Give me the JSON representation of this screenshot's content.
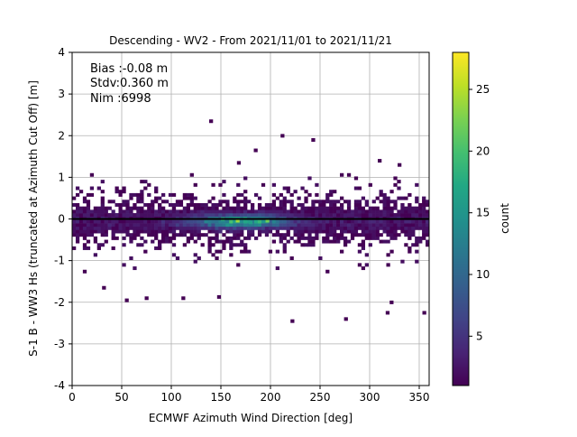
{
  "chart_data": {
    "type": "heatmap",
    "title": "Descending - WV2 - From 2021/11/01 to 2021/11/21",
    "xlabel": "ECMWF Azimuth Wind Direction [deg]",
    "ylabel": "S-1 B - WW3 Hs (truncated at Azimuth Cut Off) [m]",
    "xlim": [
      0,
      360
    ],
    "ylim": [
      -4,
      4
    ],
    "xticks": [
      0,
      50,
      100,
      150,
      200,
      250,
      300,
      350
    ],
    "yticks": [
      -4,
      -3,
      -2,
      -1,
      0,
      1,
      2,
      3,
      4
    ],
    "grid": true,
    "stats": [
      "Bias :-0.08 m",
      "Stdv:0.360 m",
      "Nim :6998"
    ],
    "zero_line": 0,
    "colorbar": {
      "label": "count",
      "colormap": "viridis",
      "range": [
        1,
        28
      ],
      "ticks": [
        5,
        10,
        15,
        20,
        25
      ]
    },
    "bin_size": {
      "x": 3.6,
      "y": 0.08
    },
    "counts_by_density": [
      {
        "y_range": [
          -0.2,
          0.2
        ],
        "x_range": [
          120,
          220
        ],
        "typical_count": 10,
        "peak_count": 24
      },
      {
        "y_range": [
          -0.6,
          0.6
        ],
        "x_range": [
          0,
          360
        ],
        "typical_count": 3
      },
      {
        "y_range": [
          -1.2,
          1.0
        ],
        "x_range": [
          0,
          360
        ],
        "typical_count": 1
      }
    ],
    "outliers": [
      {
        "x": 140,
        "y": 2.35
      },
      {
        "x": 185,
        "y": 1.65
      },
      {
        "x": 212,
        "y": 2.0
      },
      {
        "x": 243,
        "y": 1.9
      },
      {
        "x": 310,
        "y": 1.4
      },
      {
        "x": 330,
        "y": 1.3
      },
      {
        "x": 55,
        "y": -1.95
      },
      {
        "x": 75,
        "y": -1.9
      },
      {
        "x": 112,
        "y": -1.9
      },
      {
        "x": 148,
        "y": -1.87
      },
      {
        "x": 222,
        "y": -2.45
      },
      {
        "x": 276,
        "y": -2.4
      },
      {
        "x": 318,
        "y": -2.25
      },
      {
        "x": 355,
        "y": -2.25
      },
      {
        "x": 322,
        "y": -2.0
      },
      {
        "x": 32,
        "y": -1.65
      },
      {
        "x": 168,
        "y": 1.35
      }
    ],
    "colors": {
      "axis": "#000000",
      "grid": "#b0b0b0",
      "zero_line": "#000000"
    }
  }
}
